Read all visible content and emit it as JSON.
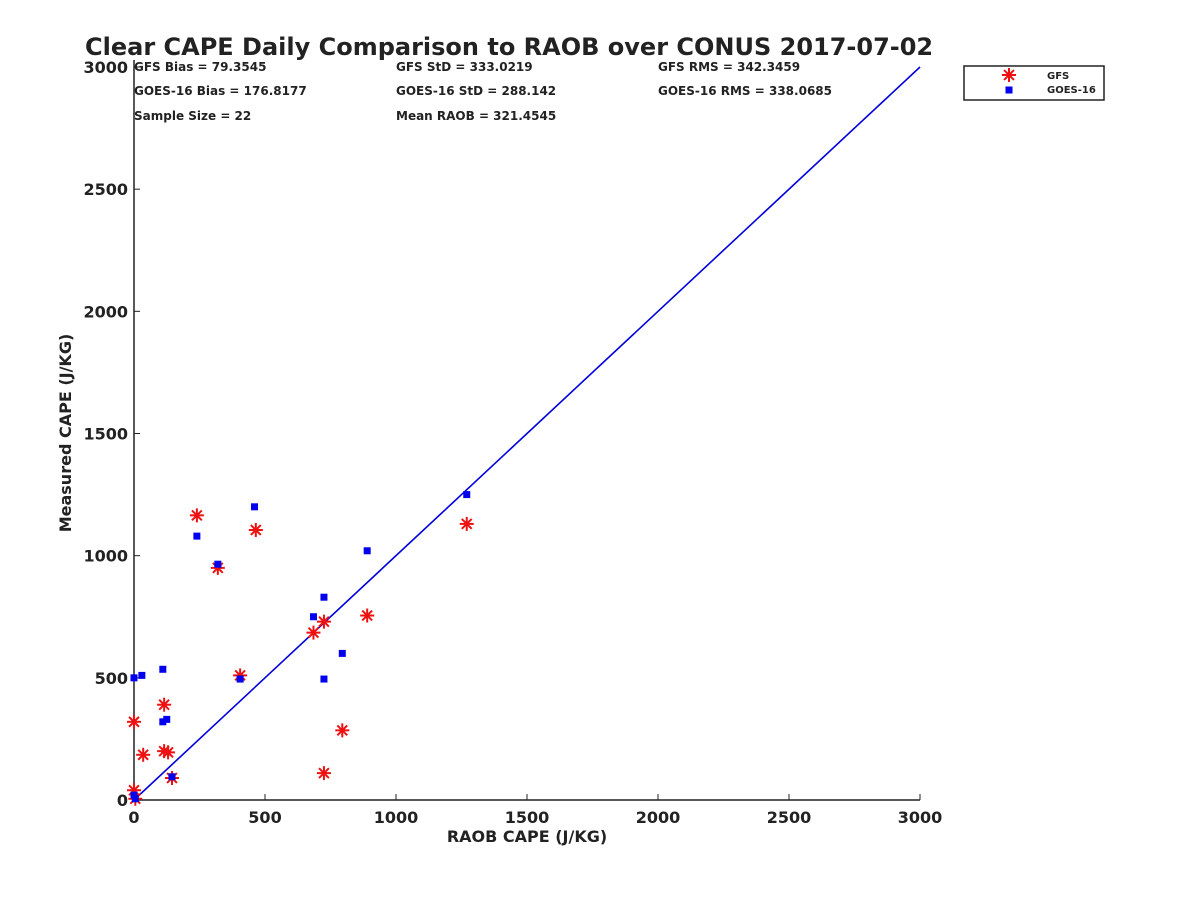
{
  "chart_data": {
    "type": "scatter",
    "title": "Clear CAPE Daily Comparison to RAOB over CONUS 2017-07-02",
    "xlabel": "RAOB CAPE (J/KG)",
    "ylabel": "Measured CAPE (J/KG)",
    "xlim": [
      0,
      3000
    ],
    "ylim": [
      0,
      3000
    ],
    "xticks": [
      "0",
      "500",
      "1000",
      "1500",
      "2000",
      "2500",
      "3000"
    ],
    "yticks": [
      "0",
      "500",
      "1000",
      "1500",
      "2000",
      "2500",
      "3000"
    ],
    "grid": false,
    "legend_position": "top-right",
    "stats": {
      "gfs_bias": "GFS Bias = 79.3545",
      "gfs_std": "GFS StD = 333.0219",
      "gfs_rms": "GFS RMS = 342.3459",
      "goes_bias": "GOES-16 Bias = 176.8177",
      "goes_std": "GOES-16 StD = 288.142",
      "goes_rms": "GOES-16 RMS = 338.0685",
      "sample_size": "Sample Size = 22",
      "mean_raob": "Mean RAOB = 321.4545"
    },
    "reference_line": {
      "x": [
        0,
        3000
      ],
      "y": [
        0,
        3000
      ],
      "color": "#0000dd"
    },
    "series": [
      {
        "name": "GFS",
        "marker": "asterisk",
        "color": "#ee1111",
        "points": [
          [
            0,
            320
          ],
          [
            0,
            40
          ],
          [
            5,
            5
          ],
          [
            35,
            185
          ],
          [
            115,
            390
          ],
          [
            115,
            200
          ],
          [
            130,
            195
          ],
          [
            145,
            90
          ],
          [
            240,
            1165
          ],
          [
            320,
            950
          ],
          [
            405,
            510
          ],
          [
            465,
            1105
          ],
          [
            685,
            685
          ],
          [
            725,
            730
          ],
          [
            725,
            110
          ],
          [
            795,
            285
          ],
          [
            890,
            755
          ],
          [
            1270,
            1130
          ]
        ]
      },
      {
        "name": "GOES-16",
        "marker": "square",
        "color": "#0000ee",
        "points": [
          [
            0,
            500
          ],
          [
            0,
            20
          ],
          [
            5,
            5
          ],
          [
            30,
            510
          ],
          [
            110,
            535
          ],
          [
            110,
            320
          ],
          [
            125,
            330
          ],
          [
            145,
            95
          ],
          [
            240,
            1080
          ],
          [
            320,
            965
          ],
          [
            405,
            495
          ],
          [
            460,
            1200
          ],
          [
            685,
            750
          ],
          [
            725,
            830
          ],
          [
            725,
            495
          ],
          [
            795,
            600
          ],
          [
            890,
            1020
          ],
          [
            1270,
            1250
          ]
        ]
      }
    ]
  }
}
